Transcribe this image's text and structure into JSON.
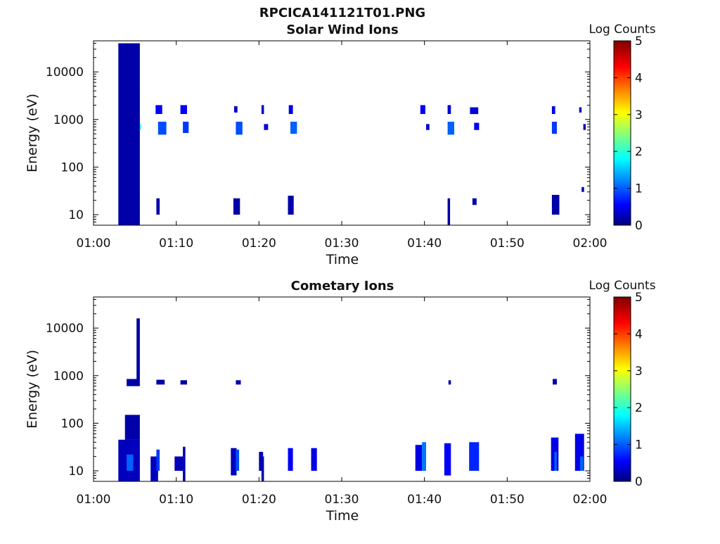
{
  "figure": {
    "title": "RPCICA141121T01.PNG"
  },
  "colors": {
    "axis": "#000000",
    "colormap": [
      "#00007f",
      "#0000ff",
      "#007fff",
      "#00ffff",
      "#7fff7f",
      "#ffff00",
      "#ff7f00",
      "#ff0000",
      "#7f0000"
    ]
  },
  "chart_data": [
    {
      "type": "heatmap",
      "title": "Solar Wind Ions",
      "xlabel": "Time",
      "ylabel": "Energy (eV)",
      "yscale": "log",
      "xlim": [
        "01:00",
        "02:00"
      ],
      "ylim": [
        6,
        45000
      ],
      "xticks": [
        "01:00",
        "01:10",
        "01:20",
        "01:30",
        "01:40",
        "01:50",
        "02:00"
      ],
      "yticks": [
        {
          "value": 10,
          "label": "10"
        },
        {
          "value": 100,
          "label": "100"
        },
        {
          "value": 1000,
          "label": "1000"
        },
        {
          "value": 10000,
          "label": "10000"
        }
      ],
      "colorbar": {
        "label": "Log Counts",
        "range": [
          0,
          5
        ],
        "ticks": [
          "0",
          "1",
          "2",
          "3",
          "4",
          "5"
        ]
      },
      "cells": [
        {
          "t0": 3.0,
          "t1": 5.6,
          "e0": 6,
          "e1": 40000,
          "v": 0.2
        },
        {
          "t0": 5.6,
          "t1": 5.7,
          "e0": 600,
          "e1": 800,
          "v": 2.0
        },
        {
          "t0": 7.5,
          "t1": 8.3,
          "e0": 1300,
          "e1": 2000,
          "v": 0.6
        },
        {
          "t0": 7.8,
          "t1": 8.8,
          "e0": 480,
          "e1": 900,
          "v": 1.0
        },
        {
          "t0": 7.6,
          "t1": 8.0,
          "e0": 10,
          "e1": 22,
          "v": 0.2
        },
        {
          "t0": 10.5,
          "t1": 11.3,
          "e0": 1300,
          "e1": 2000,
          "v": 0.6
        },
        {
          "t0": 10.8,
          "t1": 11.5,
          "e0": 520,
          "e1": 900,
          "v": 0.9
        },
        {
          "t0": 17.0,
          "t1": 17.4,
          "e0": 1400,
          "e1": 1900,
          "v": 0.3
        },
        {
          "t0": 17.2,
          "t1": 18.0,
          "e0": 480,
          "e1": 900,
          "v": 1.0
        },
        {
          "t0": 16.9,
          "t1": 17.7,
          "e0": 10,
          "e1": 22,
          "v": 0.2
        },
        {
          "t0": 20.3,
          "t1": 20.6,
          "e0": 1300,
          "e1": 2000,
          "v": 0.4
        },
        {
          "t0": 20.6,
          "t1": 21.1,
          "e0": 600,
          "e1": 800,
          "v": 0.5
        },
        {
          "t0": 23.6,
          "t1": 24.1,
          "e0": 1300,
          "e1": 2000,
          "v": 0.5
        },
        {
          "t0": 23.8,
          "t1": 24.6,
          "e0": 500,
          "e1": 900,
          "v": 1.1
        },
        {
          "t0": 23.5,
          "t1": 24.2,
          "e0": 10,
          "e1": 25,
          "v": 0.2
        },
        {
          "t0": 39.5,
          "t1": 40.1,
          "e0": 1300,
          "e1": 2000,
          "v": 0.6
        },
        {
          "t0": 40.2,
          "t1": 40.6,
          "e0": 600,
          "e1": 800,
          "v": 0.4
        },
        {
          "t0": 42.8,
          "t1": 43.2,
          "e0": 1300,
          "e1": 2000,
          "v": 0.4
        },
        {
          "t0": 42.8,
          "t1": 43.6,
          "e0": 480,
          "e1": 900,
          "v": 1.1
        },
        {
          "t0": 42.8,
          "t1": 43.1,
          "e0": 6,
          "e1": 22,
          "v": 0.2
        },
        {
          "t0": 45.5,
          "t1": 46.5,
          "e0": 1300,
          "e1": 1800,
          "v": 0.4
        },
        {
          "t0": 46.0,
          "t1": 46.6,
          "e0": 600,
          "e1": 850,
          "v": 0.5
        },
        {
          "t0": 45.8,
          "t1": 46.3,
          "e0": 16,
          "e1": 22,
          "v": 0.2
        },
        {
          "t0": 55.4,
          "t1": 55.8,
          "e0": 1300,
          "e1": 1900,
          "v": 0.5
        },
        {
          "t0": 55.4,
          "t1": 56.0,
          "e0": 500,
          "e1": 900,
          "v": 0.9
        },
        {
          "t0": 55.4,
          "t1": 56.3,
          "e0": 10,
          "e1": 26,
          "v": 0.2
        },
        {
          "t0": 58.7,
          "t1": 59.0,
          "e0": 1400,
          "e1": 1800,
          "v": 0.3
        },
        {
          "t0": 59.2,
          "t1": 59.5,
          "e0": 600,
          "e1": 800,
          "v": 0.3
        },
        {
          "t0": 59.0,
          "t1": 59.3,
          "e0": 30,
          "e1": 38,
          "v": 0.2
        }
      ]
    },
    {
      "type": "heatmap",
      "title": "Cometary Ions",
      "xlabel": "Time",
      "ylabel": "Energy (eV)",
      "yscale": "log",
      "xlim": [
        "01:00",
        "02:00"
      ],
      "ylim": [
        6,
        45000
      ],
      "xticks": [
        "01:00",
        "01:10",
        "01:20",
        "01:30",
        "01:40",
        "01:50",
        "02:00"
      ],
      "yticks": [
        {
          "value": 10,
          "label": "10"
        },
        {
          "value": 100,
          "label": "100"
        },
        {
          "value": 1000,
          "label": "1000"
        },
        {
          "value": 10000,
          "label": "10000"
        }
      ],
      "colorbar": {
        "label": "Log Counts",
        "range": [
          0,
          5
        ],
        "ticks": [
          "0",
          "1",
          "2",
          "3",
          "4",
          "5"
        ]
      },
      "cells": [
        {
          "t0": 3.0,
          "t1": 5.6,
          "e0": 6,
          "e1": 45,
          "v": 0.3
        },
        {
          "t0": 4.0,
          "t1": 4.8,
          "e0": 10,
          "e1": 22,
          "v": 1.1
        },
        {
          "t0": 3.8,
          "t1": 5.6,
          "e0": 45,
          "e1": 150,
          "v": 0.2
        },
        {
          "t0": 4.0,
          "t1": 5.6,
          "e0": 600,
          "e1": 850,
          "v": 0.2
        },
        {
          "t0": 5.2,
          "t1": 5.6,
          "e0": 850,
          "e1": 16000,
          "v": 0.2
        },
        {
          "t0": 6.9,
          "t1": 7.8,
          "e0": 6,
          "e1": 20,
          "v": 0.3
        },
        {
          "t0": 7.6,
          "t1": 8.0,
          "e0": 10,
          "e1": 28,
          "v": 0.9
        },
        {
          "t0": 7.6,
          "t1": 8.6,
          "e0": 650,
          "e1": 820,
          "v": 0.2
        },
        {
          "t0": 9.8,
          "t1": 10.8,
          "e0": 10,
          "e1": 20,
          "v": 0.3
        },
        {
          "t0": 10.8,
          "t1": 11.1,
          "e0": 6,
          "e1": 32,
          "v": 0.2
        },
        {
          "t0": 10.5,
          "t1": 11.3,
          "e0": 650,
          "e1": 800,
          "v": 0.2
        },
        {
          "t0": 16.6,
          "t1": 17.3,
          "e0": 8,
          "e1": 30,
          "v": 0.3
        },
        {
          "t0": 17.2,
          "t1": 17.6,
          "e0": 10,
          "e1": 28,
          "v": 1.0
        },
        {
          "t0": 17.2,
          "t1": 17.8,
          "e0": 650,
          "e1": 800,
          "v": 0.2
        },
        {
          "t0": 20.0,
          "t1": 20.5,
          "e0": 10,
          "e1": 25,
          "v": 0.3
        },
        {
          "t0": 20.3,
          "t1": 20.6,
          "e0": 6,
          "e1": 20,
          "v": 0.2
        },
        {
          "t0": 23.5,
          "t1": 24.1,
          "e0": 10,
          "e1": 30,
          "v": 0.6
        },
        {
          "t0": 26.3,
          "t1": 27.0,
          "e0": 10,
          "e1": 30,
          "v": 0.5
        },
        {
          "t0": 38.9,
          "t1": 39.7,
          "e0": 10,
          "e1": 35,
          "v": 0.5
        },
        {
          "t0": 39.7,
          "t1": 40.2,
          "e0": 10,
          "e1": 40,
          "v": 1.2
        },
        {
          "t0": 42.4,
          "t1": 43.2,
          "e0": 8,
          "e1": 38,
          "v": 0.6
        },
        {
          "t0": 42.9,
          "t1": 43.2,
          "e0": 650,
          "e1": 800,
          "v": 0.2
        },
        {
          "t0": 45.4,
          "t1": 46.6,
          "e0": 10,
          "e1": 40,
          "v": 0.8
        },
        {
          "t0": 55.3,
          "t1": 56.2,
          "e0": 10,
          "e1": 50,
          "v": 0.5
        },
        {
          "t0": 55.7,
          "t1": 56.0,
          "e0": 10,
          "e1": 25,
          "v": 1.1
        },
        {
          "t0": 55.5,
          "t1": 56.0,
          "e0": 650,
          "e1": 850,
          "v": 0.2
        },
        {
          "t0": 58.2,
          "t1": 59.3,
          "e0": 10,
          "e1": 60,
          "v": 0.5
        },
        {
          "t0": 58.8,
          "t1": 59.2,
          "e0": 10,
          "e1": 20,
          "v": 1.1
        }
      ]
    }
  ]
}
